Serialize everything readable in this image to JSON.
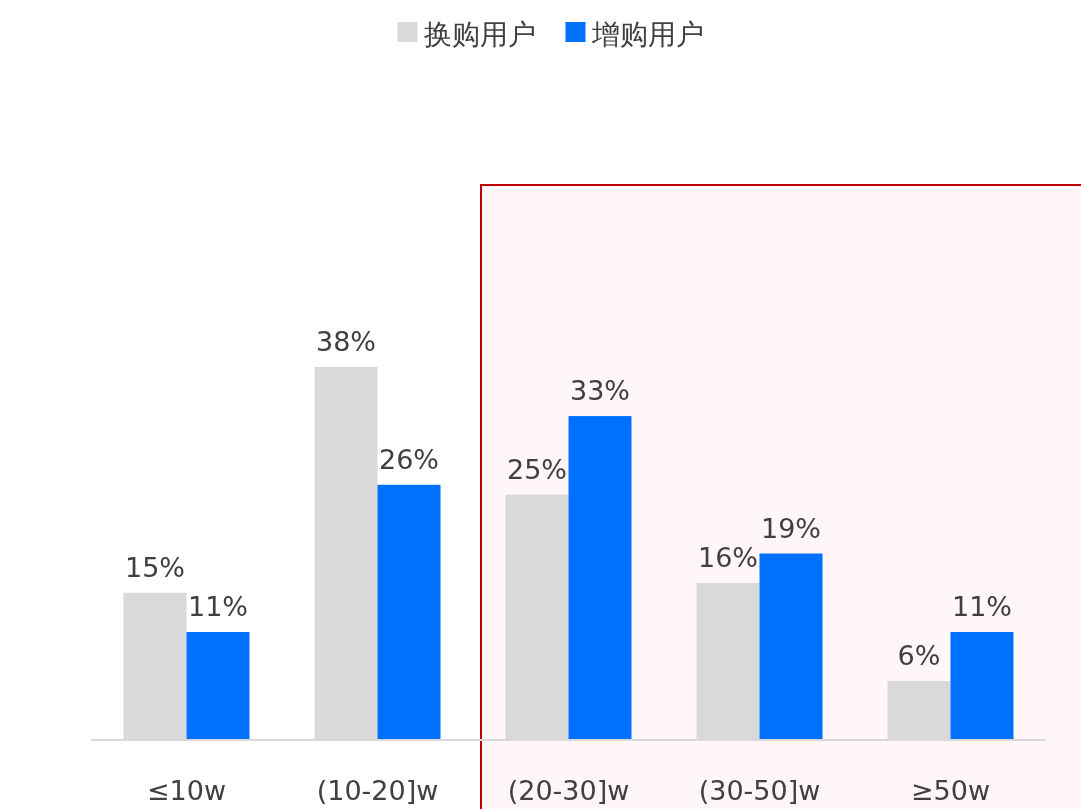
{
  "chart_data": {
    "type": "bar",
    "categories": [
      "≤10w",
      "(10-20]w",
      "(20-30]w",
      "(30-50]w",
      "≥50w"
    ],
    "series": [
      {
        "name": "换购用户",
        "color": "#d9d9d9",
        "values": [
          15,
          38,
          25,
          16,
          6
        ],
        "value_labels": [
          "15%",
          "38%",
          "25%",
          "16%",
          "6%"
        ]
      },
      {
        "name": "增购用户",
        "color": "#0070ff",
        "values": [
          11,
          26,
          33,
          19,
          11
        ],
        "value_labels": [
          "11%",
          "26%",
          "33%",
          "19%",
          "11%"
        ]
      }
    ],
    "bands": [
      {
        "axis": "x",
        "from": "(20-30]w",
        "to": "≥50w",
        "color": "#c00000"
      }
    ],
    "legend": "top",
    "grid": false
  }
}
